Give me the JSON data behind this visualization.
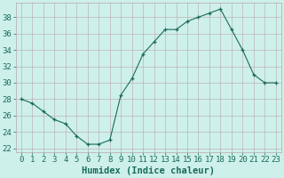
{
  "x": [
    0,
    1,
    2,
    3,
    4,
    5,
    6,
    7,
    8,
    9,
    10,
    11,
    12,
    13,
    14,
    15,
    16,
    17,
    18,
    19,
    20,
    21,
    22,
    23
  ],
  "y": [
    28,
    27.5,
    26.5,
    25.5,
    25,
    23.5,
    22.5,
    22.5,
    23,
    28.5,
    30.5,
    33.5,
    35,
    36.5,
    36.5,
    37.5,
    38,
    38.5,
    39,
    36.5,
    34,
    31,
    30,
    30
  ],
  "line_color": "#1a6b5a",
  "marker": "+",
  "bg_color": "#cef0ea",
  "grid_color": "#b8a8a8",
  "xlabel": "Humidex (Indice chaleur)",
  "xlim": [
    -0.5,
    23.5
  ],
  "ylim": [
    21.5,
    39.8
  ],
  "yticks": [
    22,
    24,
    26,
    28,
    30,
    32,
    34,
    36,
    38
  ],
  "xticks": [
    0,
    1,
    2,
    3,
    4,
    5,
    6,
    7,
    8,
    9,
    10,
    11,
    12,
    13,
    14,
    15,
    16,
    17,
    18,
    19,
    20,
    21,
    22,
    23
  ],
  "tick_label_fontsize": 6.5,
  "xlabel_fontsize": 7.5,
  "label_color": "#1a6b5a"
}
